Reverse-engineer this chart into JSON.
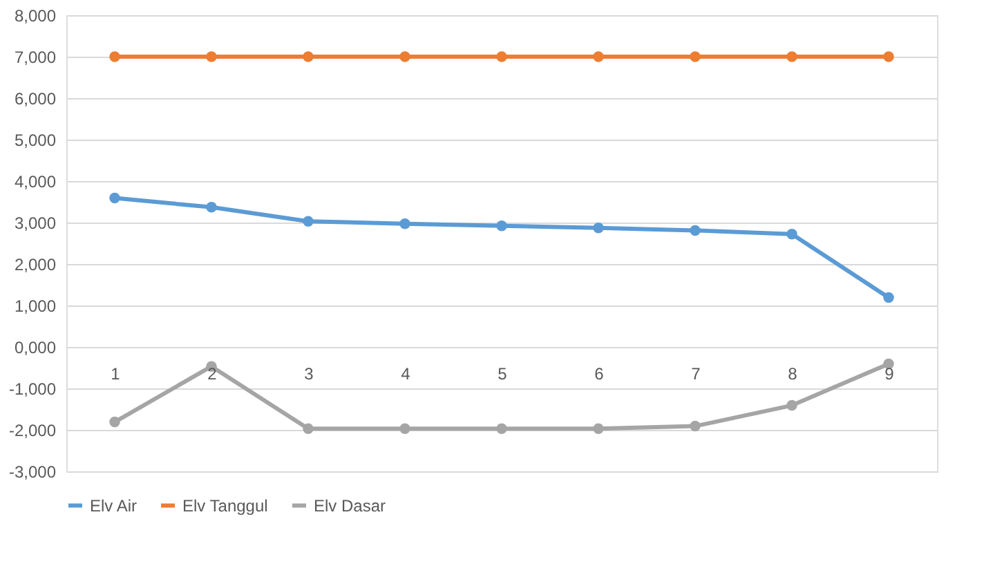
{
  "chart_data": {
    "type": "line",
    "categories": [
      "1",
      "2",
      "3",
      "4",
      "5",
      "6",
      "7",
      "8",
      "9"
    ],
    "series": [
      {
        "name": "Elv Air",
        "color": "#5b9bd5",
        "values": [
          3590,
          3370,
          3030,
          2970,
          2920,
          2870,
          2810,
          2720,
          1190
        ]
      },
      {
        "name": "Elv Tanggul",
        "color": "#ed7d31",
        "values": [
          7000,
          7000,
          7000,
          7000,
          7000,
          7000,
          7000,
          7000,
          7000
        ]
      },
      {
        "name": "Elv Dasar",
        "color": "#a5a5a5",
        "values": [
          -1810,
          -470,
          -1970,
          -1970,
          -1970,
          -1970,
          -1910,
          -1410,
          -410
        ]
      }
    ],
    "ylim": [
      -3000,
      8000
    ],
    "yticks": [
      {
        "value": -3000,
        "label": "-3,000"
      },
      {
        "value": -2000,
        "label": "-2,000"
      },
      {
        "value": -1000,
        "label": "-1,000"
      },
      {
        "value": 0,
        "label": "0,000"
      },
      {
        "value": 1000,
        "label": "1,000"
      },
      {
        "value": 2000,
        "label": "2,000"
      },
      {
        "value": 3000,
        "label": "3,000"
      },
      {
        "value": 4000,
        "label": "4,000"
      },
      {
        "value": 5000,
        "label": "5,000"
      },
      {
        "value": 6000,
        "label": "6,000"
      },
      {
        "value": 7000,
        "label": "7,000"
      },
      {
        "value": 8000,
        "label": "8,000"
      }
    ],
    "grid": "y",
    "legend": "bottom",
    "marker": "circle",
    "line_style": "solid"
  }
}
